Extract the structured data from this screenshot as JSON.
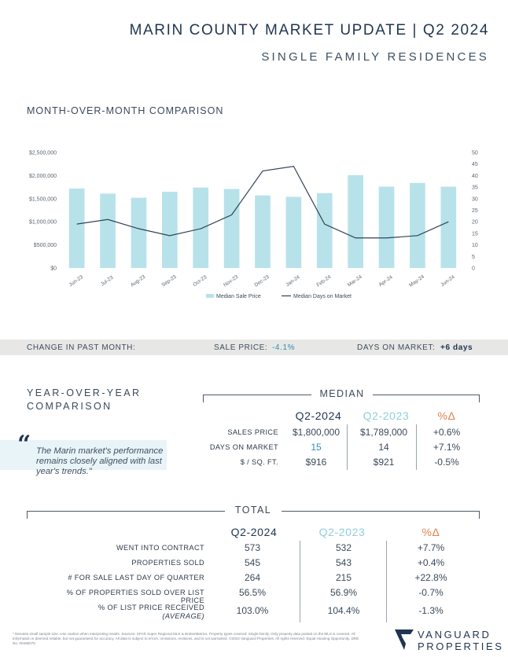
{
  "header": {
    "title": "MARIN COUNTY MARKET UPDATE | Q2 2024",
    "subtitle": "SINGLE FAMILY RESIDENCES"
  },
  "mom": {
    "heading": "MONTH-OVER-MONTH COMPARISON"
  },
  "chart_data": {
    "type": "bar",
    "categories": [
      "Jun-23",
      "Jul-23",
      "Aug-23",
      "Sep-23",
      "Oct-23",
      "Nov-23",
      "Dec-23",
      "Jan-24",
      "Feb-24",
      "Mar-24",
      "Apr-24",
      "May-24",
      "Jun-24"
    ],
    "series": [
      {
        "name": "Median Sale Price",
        "type": "bar",
        "axis": "left",
        "color": "#b8e2ea",
        "values": [
          1720000,
          1610000,
          1520000,
          1650000,
          1740000,
          1710000,
          1570000,
          1540000,
          1620000,
          2010000,
          1760000,
          1840000,
          1760000
        ]
      },
      {
        "name": "Median Days on Market",
        "type": "line",
        "axis": "right",
        "color": "#2f4256",
        "values": [
          19,
          21,
          17,
          14,
          17,
          23,
          42,
          44,
          19,
          13,
          13,
          14,
          20
        ]
      }
    ],
    "y_left": {
      "min": 0,
      "max": 2500000,
      "ticks": [
        "$0",
        "$500,000",
        "$1,000,000",
        "$1,500,000",
        "$2,000,000",
        "$2,500,000"
      ]
    },
    "y_right": {
      "min": 0,
      "max": 50,
      "ticks": [
        "0",
        "5",
        "10",
        "15",
        "20",
        "25",
        "30",
        "35",
        "40",
        "45",
        "50"
      ]
    },
    "legend": "bottom",
    "grid": false
  },
  "change": {
    "label": "CHANGE IN PAST MONTH:",
    "sale_label": "SALE PRICE:",
    "sale_value": "-4.1%",
    "dom_label": "DAYS ON MARKET:",
    "dom_value": "+6 days"
  },
  "yoy": {
    "heading_line1": "YEAR-OVER-YEAR",
    "heading_line2": "COMPARISON",
    "quote_mark": "“",
    "quote": "The Marin market's performance remains closely aligned with last year's trends.\""
  },
  "median": {
    "label": "MEDIAN",
    "headers": [
      "Q2-2024",
      "Q2-2023",
      "%Δ"
    ],
    "rows": [
      {
        "label": "SALES PRICE",
        "q2024": "$1,800,000",
        "q2023": "$1,789,000",
        "pct": "+0.6%"
      },
      {
        "label": "DAYS ON MARKET",
        "q2024": "15",
        "q2023": "14",
        "pct": "+7.1%"
      },
      {
        "label": "$ / SQ. FT.",
        "q2024": "$916",
        "q2023": "$921",
        "pct": "-0.5%"
      }
    ]
  },
  "total": {
    "label": "TOTAL",
    "headers": [
      "Q2-2024",
      "Q2-2023",
      "%Δ"
    ],
    "rows": [
      {
        "label": "WENT INTO CONTRACT",
        "q2024": "573",
        "q2023": "532",
        "pct": "+7.7%"
      },
      {
        "label": "PROPERTIES SOLD",
        "q2024": "545",
        "q2023": "543",
        "pct": "+0.4%"
      },
      {
        "label": "# FOR SALE LAST DAY OF QUARTER",
        "q2024": "264",
        "q2023": "215",
        "pct": "+22.8%"
      },
      {
        "label": "% OF PROPERTIES SOLD OVER LIST PRICE",
        "q2024": "56.5%",
        "q2023": "56.9%",
        "pct": "-0.7%"
      },
      {
        "label": "% OF LIST PRICE RECEIVED",
        "sublabel": "(AVERAGE)",
        "q2024": "103.0%",
        "q2023": "104.4%",
        "pct": "-1.3%"
      }
    ]
  },
  "footer": {
    "footnote": "* Denotes small sample size. Use caution when interpreting results. Sources: SFAR Super Regional MLS & BrokerMetrics. Property types covered: Single-family. Only property data posted on the MLS is covered. All information is deemed reliable, but not guaranteed for accuracy. All data is subject to errors, omissions, revisions, and is not warranted. ©2024 Vanguard Properties. All rights reserved. Equal Housing Opportunity. DRE No. 00486075",
    "logo_line1": "VANGUARD",
    "logo_line2": "PROPERTIES"
  }
}
